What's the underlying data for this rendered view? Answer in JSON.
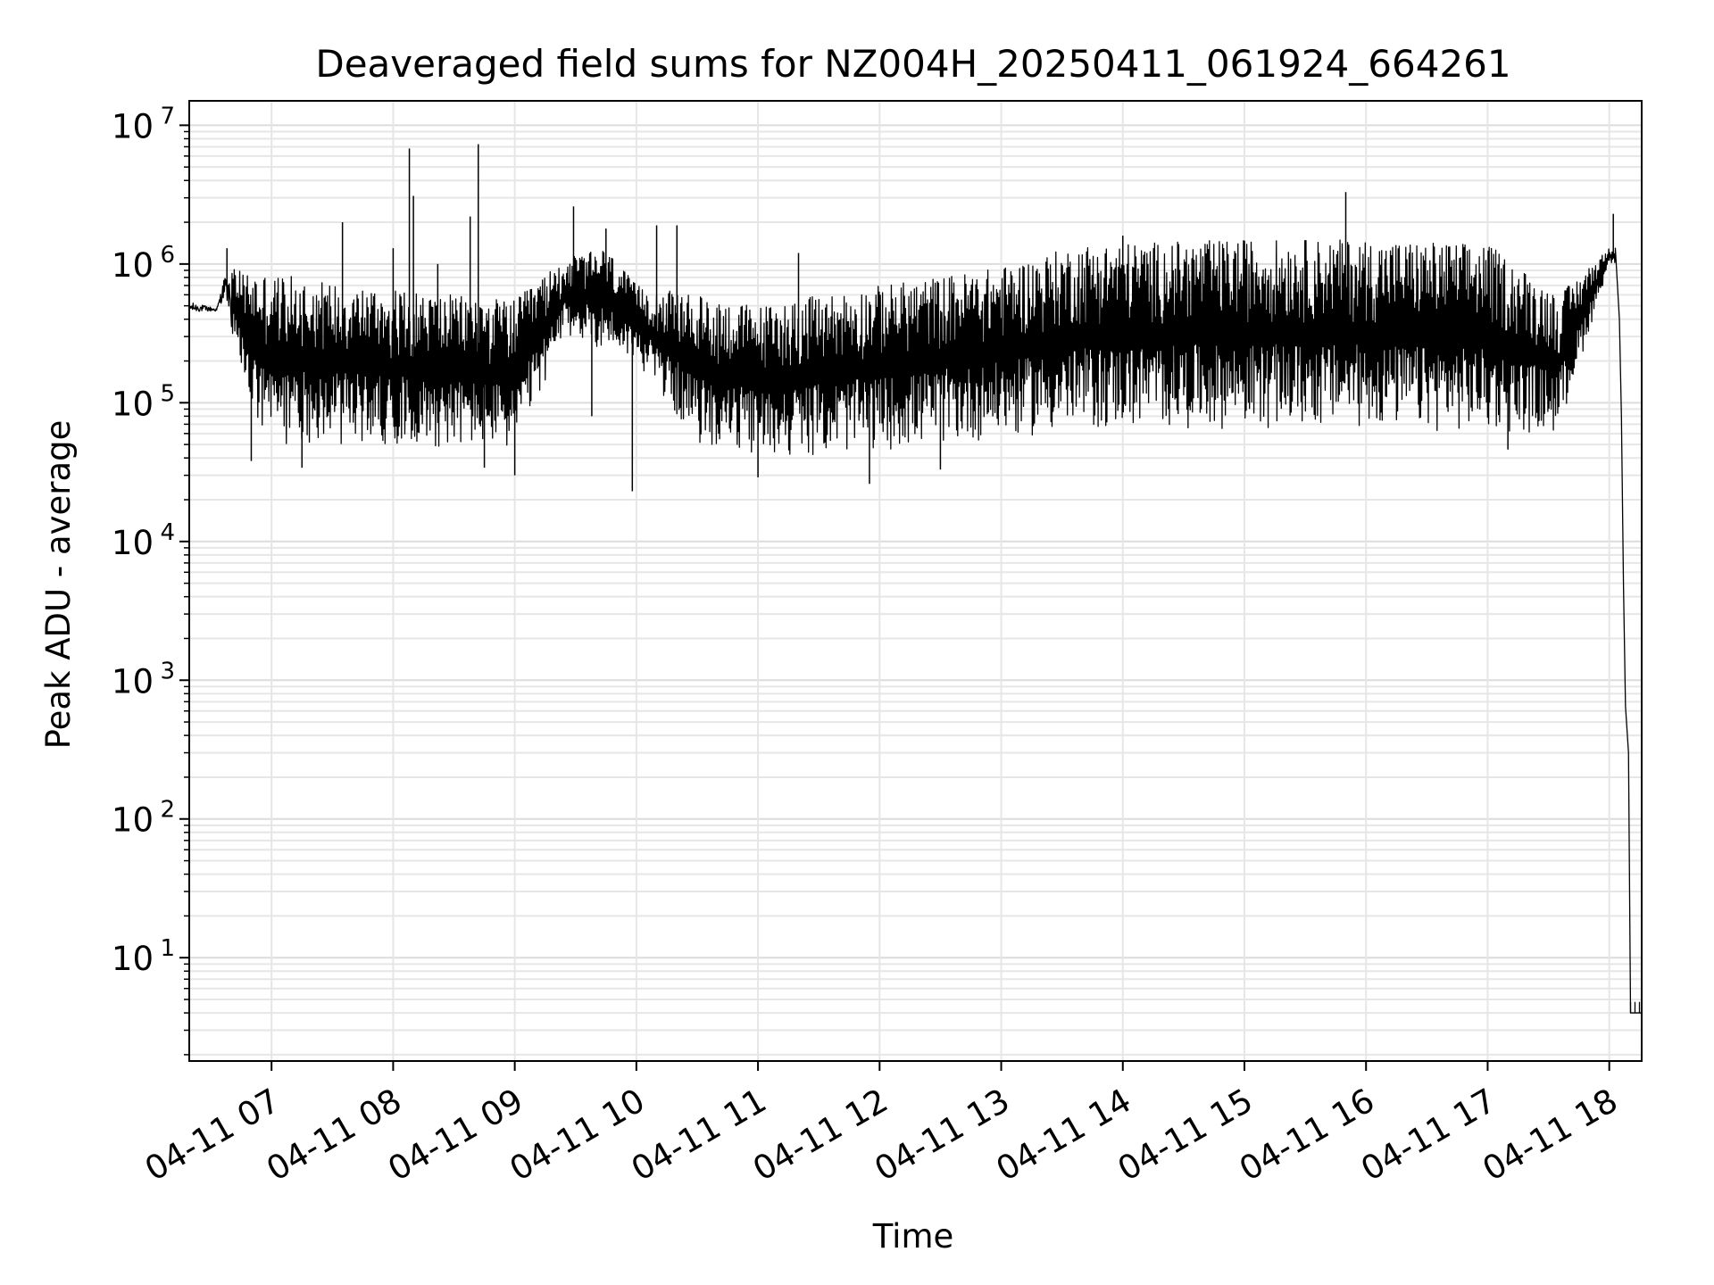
{
  "chart_data": {
    "type": "line",
    "title": "Deaveraged field sums for NZ004H_20250411_061924_664261",
    "xlabel": "Time",
    "ylabel": "Peak ADU - average",
    "yscale": "log",
    "ylim": [
      1.8,
      15000000
    ],
    "xlim": [
      "2025-04-11T06:19:24",
      "2025-04-11T18:16:00"
    ],
    "grid": "major and minor",
    "line_color": "#000000",
    "x_ticks": [
      {
        "value": "2025-04-11T07:00",
        "label": "04-11 07"
      },
      {
        "value": "2025-04-11T08:00",
        "label": "04-11 08"
      },
      {
        "value": "2025-04-11T09:00",
        "label": "04-11 09"
      },
      {
        "value": "2025-04-11T10:00",
        "label": "04-11 10"
      },
      {
        "value": "2025-04-11T11:00",
        "label": "04-11 11"
      },
      {
        "value": "2025-04-11T12:00",
        "label": "04-11 12"
      },
      {
        "value": "2025-04-11T13:00",
        "label": "04-11 13"
      },
      {
        "value": "2025-04-11T14:00",
        "label": "04-11 14"
      },
      {
        "value": "2025-04-11T15:00",
        "label": "04-11 15"
      },
      {
        "value": "2025-04-11T16:00",
        "label": "04-11 16"
      },
      {
        "value": "2025-04-11T17:00",
        "label": "04-11 17"
      },
      {
        "value": "2025-04-11T18:00",
        "label": "04-11 18"
      }
    ],
    "y_ticks": [
      {
        "value": 10,
        "base": "10",
        "exp": "1"
      },
      {
        "value": 100,
        "base": "10",
        "exp": "2"
      },
      {
        "value": 1000,
        "base": "10",
        "exp": "3"
      },
      {
        "value": 10000,
        "base": "10",
        "exp": "4"
      },
      {
        "value": 100000,
        "base": "10",
        "exp": "5"
      },
      {
        "value": 1000000,
        "base": "10",
        "exp": "6"
      },
      {
        "value": 10000000,
        "base": "10",
        "exp": "7"
      }
    ],
    "series": [
      {
        "color": "#000000",
        "envelope_upper": [
          {
            "x": "2025-04-11T06:19:24",
            "y": 600000
          },
          {
            "x": "2025-04-11T06:33:00",
            "y": 500000
          },
          {
            "x": "2025-04-11T06:37:00",
            "y": 1100000
          },
          {
            "x": "2025-04-11T06:42:00",
            "y": 900000
          },
          {
            "x": "2025-04-11T07:00:00",
            "y": 850000
          },
          {
            "x": "2025-04-11T08:00:00",
            "y": 650000
          },
          {
            "x": "2025-04-11T09:00:00",
            "y": 550000
          },
          {
            "x": "2025-04-11T09:25:00",
            "y": 1100000
          },
          {
            "x": "2025-04-11T09:45:00",
            "y": 1300000
          },
          {
            "x": "2025-04-11T10:00:00",
            "y": 700000
          },
          {
            "x": "2025-04-11T11:00:00",
            "y": 500000
          },
          {
            "x": "2025-04-11T12:00:00",
            "y": 700000
          },
          {
            "x": "2025-04-11T13:00:00",
            "y": 950000
          },
          {
            "x": "2025-04-11T13:40:00",
            "y": 1400000
          },
          {
            "x": "2025-04-11T15:00:00",
            "y": 1500000
          },
          {
            "x": "2025-04-11T16:00:00",
            "y": 1500000
          },
          {
            "x": "2025-04-11T17:00:00",
            "y": 1400000
          },
          {
            "x": "2025-04-11T17:35:00",
            "y": 600000
          },
          {
            "x": "2025-04-11T18:00:00",
            "y": 1300000
          }
        ],
        "envelope_lower": [
          {
            "x": "2025-04-11T06:19:24",
            "y": 400000
          },
          {
            "x": "2025-04-11T06:37:00",
            "y": 450000
          },
          {
            "x": "2025-04-11T06:45:00",
            "y": 150000
          },
          {
            "x": "2025-04-11T06:55:00",
            "y": 50000
          },
          {
            "x": "2025-04-11T08:00:00",
            "y": 50000
          },
          {
            "x": "2025-04-11T09:00:00",
            "y": 45000
          },
          {
            "x": "2025-04-11T09:25:00",
            "y": 300000
          },
          {
            "x": "2025-04-11T10:00:00",
            "y": 200000
          },
          {
            "x": "2025-04-11T10:30:00",
            "y": 50000
          },
          {
            "x": "2025-04-11T11:00:00",
            "y": 40000
          },
          {
            "x": "2025-04-11T12:00:00",
            "y": 45000
          },
          {
            "x": "2025-04-11T13:00:00",
            "y": 55000
          },
          {
            "x": "2025-04-11T14:00:00",
            "y": 65000
          },
          {
            "x": "2025-04-11T15:00:00",
            "y": 65000
          },
          {
            "x": "2025-04-11T16:00:00",
            "y": 65000
          },
          {
            "x": "2025-04-11T17:00:00",
            "y": 60000
          },
          {
            "x": "2025-04-11T17:35:00",
            "y": 60000
          },
          {
            "x": "2025-04-11T18:00:00",
            "y": 1000000
          }
        ],
        "spikes": [
          {
            "x": "2025-04-11T06:38:00",
            "y": 1300000
          },
          {
            "x": "2025-04-11T06:50:00",
            "y": 38000
          },
          {
            "x": "2025-04-11T07:15:00",
            "y": 34000
          },
          {
            "x": "2025-04-11T07:35:00",
            "y": 2000000
          },
          {
            "x": "2025-04-11T08:00:00",
            "y": 1300000
          },
          {
            "x": "2025-04-11T08:08:00",
            "y": 6800000
          },
          {
            "x": "2025-04-11T08:10:00",
            "y": 3100000
          },
          {
            "x": "2025-04-11T08:22:00",
            "y": 1000000
          },
          {
            "x": "2025-04-11T08:38:00",
            "y": 2200000
          },
          {
            "x": "2025-04-11T08:42:00",
            "y": 7300000
          },
          {
            "x": "2025-04-11T08:45:00",
            "y": 34000
          },
          {
            "x": "2025-04-11T09:00:00",
            "y": 30000
          },
          {
            "x": "2025-04-11T09:29:00",
            "y": 2600000
          },
          {
            "x": "2025-04-11T09:45:00",
            "y": 1800000
          },
          {
            "x": "2025-04-11T09:38:00",
            "y": 80000
          },
          {
            "x": "2025-04-11T09:58:00",
            "y": 23000
          },
          {
            "x": "2025-04-11T10:10:00",
            "y": 1900000
          },
          {
            "x": "2025-04-11T10:20:00",
            "y": 1900000
          },
          {
            "x": "2025-04-11T11:00:00",
            "y": 29000
          },
          {
            "x": "2025-04-11T11:20:00",
            "y": 1200000
          },
          {
            "x": "2025-04-11T11:55:00",
            "y": 26000
          },
          {
            "x": "2025-04-11T12:30:00",
            "y": 33000
          },
          {
            "x": "2025-04-11T14:00:00",
            "y": 1600000
          },
          {
            "x": "2025-04-11T15:50:00",
            "y": 3300000
          },
          {
            "x": "2025-04-11T17:10:00",
            "y": 46000
          },
          {
            "x": "2025-04-11T18:02:00",
            "y": 2300000
          }
        ],
        "tail": [
          {
            "x": "2025-04-11T18:03:00",
            "y": 1300000
          },
          {
            "x": "2025-04-11T18:05:00",
            "y": 400000
          },
          {
            "x": "2025-04-11T18:06:00",
            "y": 80000
          },
          {
            "x": "2025-04-11T18:07:00",
            "y": 5000
          },
          {
            "x": "2025-04-11T18:08:00",
            "y": 650
          },
          {
            "x": "2025-04-11T18:09:30",
            "y": 300
          },
          {
            "x": "2025-04-11T18:10:30",
            "y": 4
          },
          {
            "x": "2025-04-11T18:16:00",
            "y": 4
          }
        ]
      }
    ]
  }
}
